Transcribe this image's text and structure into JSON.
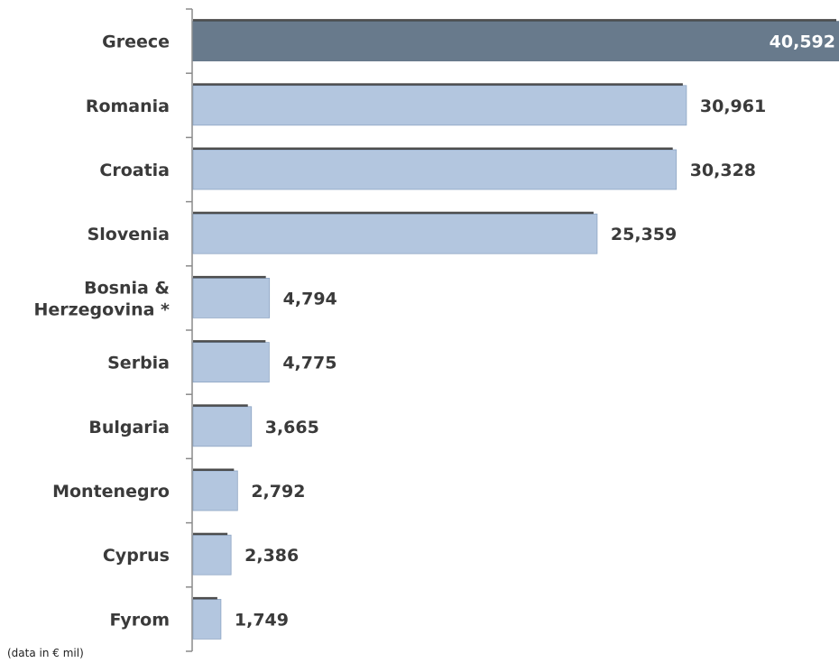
{
  "chart_data": {
    "type": "bar",
    "orientation": "horizontal",
    "categories": [
      "Greece",
      "Romania",
      "Croatia",
      "Slovenia",
      "Bosnia & Herzegovina *",
      "Serbia",
      "Bulgaria",
      "Montenegro",
      "Cyprus",
      "Fyrom"
    ],
    "category_lines": [
      [
        "Greece"
      ],
      [
        "Romania"
      ],
      [
        "Croatia"
      ],
      [
        "Slovenia"
      ],
      [
        "Bosnia &",
        "Herzegovina *"
      ],
      [
        "Serbia"
      ],
      [
        "Bulgaria"
      ],
      [
        "Montenegro"
      ],
      [
        "Cyprus"
      ],
      [
        "Fyrom"
      ]
    ],
    "values": [
      40592,
      30961,
      30328,
      25359,
      4794,
      4775,
      3665,
      2792,
      2386,
      1749
    ],
    "value_labels": [
      "40,592",
      "30,961",
      "30,328",
      "25,359",
      "4,794",
      "4,775",
      "3,665",
      "2,792",
      "2,386",
      "1,749"
    ],
    "highlight_index": 0,
    "xlim": [
      0,
      40592
    ],
    "grid": false,
    "legend": "none",
    "note": "(data in € mil)",
    "colors": {
      "highlight": "#687a8c",
      "bar": "#b3c6df",
      "bar_edge": "#8fa6c4",
      "bar_top_shadow": "#2f2f2f",
      "axis": "#8a8a8a"
    }
  }
}
